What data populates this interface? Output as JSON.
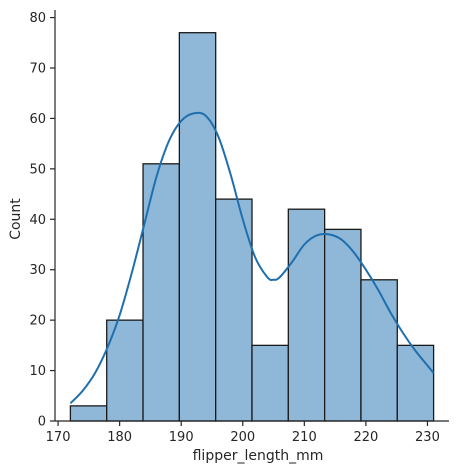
{
  "chart_data": {
    "type": "bar",
    "title": "",
    "xlabel": "flipper_length_mm",
    "ylabel": "Count",
    "xlim": [
      169.5,
      233.5
    ],
    "ylim": [
      0,
      81.5
    ],
    "xticks": [
      170,
      180,
      190,
      200,
      210,
      220,
      230
    ],
    "yticks": [
      0,
      10,
      20,
      30,
      40,
      50,
      60,
      70,
      80
    ],
    "grid": false,
    "legend": "none",
    "bins": [
      {
        "x0": 172.0,
        "x1": 177.9,
        "count": 3
      },
      {
        "x0": 177.9,
        "x1": 183.8,
        "count": 20
      },
      {
        "x0": 183.8,
        "x1": 189.7,
        "count": 51
      },
      {
        "x0": 189.7,
        "x1": 195.6,
        "count": 77
      },
      {
        "x0": 195.6,
        "x1": 201.5,
        "count": 44
      },
      {
        "x0": 201.5,
        "x1": 207.4,
        "count": 15
      },
      {
        "x0": 207.4,
        "x1": 213.3,
        "count": 42
      },
      {
        "x0": 213.3,
        "x1": 219.2,
        "count": 38
      },
      {
        "x0": 219.2,
        "x1": 225.1,
        "count": 28
      },
      {
        "x0": 225.1,
        "x1": 231.0,
        "count": 15
      }
    ],
    "kde": {
      "x": [
        172,
        174,
        176,
        178,
        180,
        182,
        184,
        186,
        188,
        190,
        192,
        194,
        196,
        198,
        200,
        202,
        204,
        205,
        206,
        208,
        210,
        212,
        214,
        216,
        218,
        220,
        222,
        224,
        226,
        228,
        230,
        231
      ],
      "y": [
        3.5,
        6.0,
        9.5,
        14.5,
        21.0,
        29.5,
        39.0,
        48.5,
        55.5,
        59.5,
        61.0,
        60.5,
        56.5,
        49.0,
        40.0,
        32.5,
        28.5,
        28.0,
        28.5,
        31.5,
        35.0,
        36.8,
        37.0,
        36.0,
        33.5,
        30.0,
        26.0,
        21.5,
        17.5,
        14.0,
        11.0,
        9.5
      ]
    },
    "colors": {
      "bar_fill": "#8fb8d8",
      "bar_edge": "#1a1a1a",
      "kde_line": "#1f6fae",
      "axis": "#262626"
    }
  }
}
